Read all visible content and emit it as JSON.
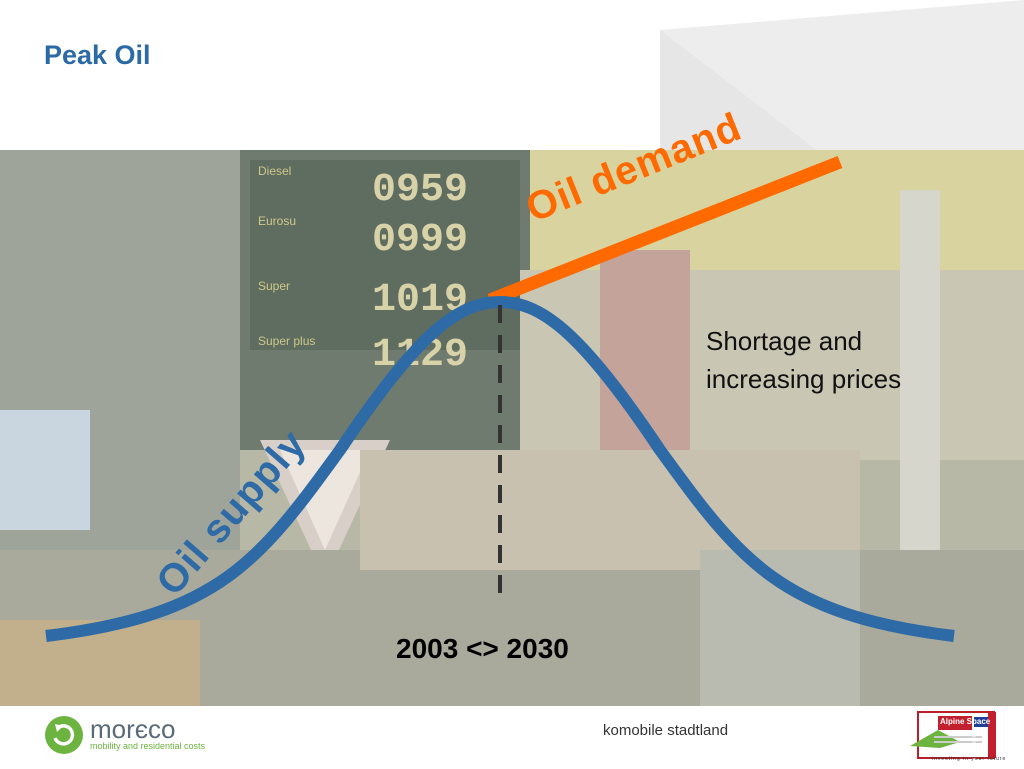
{
  "slide": {
    "title": "Peak Oil",
    "shortage_line1": "Shortage and",
    "shortage_line2": "increasing prices",
    "years": "2003 <> 2030",
    "footer_text": "komobile stadtland"
  },
  "diagram": {
    "demand_label": "Oil demand",
    "supply_label": "Oil supply",
    "demand_color": "#ff6a00",
    "supply_color": "#2e6aa6"
  },
  "logos": {
    "left_name": "morєco",
    "left_tagline": "mobility and residential costs",
    "right_name": "Alpine Space",
    "right_side": "COOPERATION",
    "right_tagline": "investing in your future"
  },
  "colors": {
    "title": "#2b6aa6",
    "logo_green": "#6db33f"
  }
}
